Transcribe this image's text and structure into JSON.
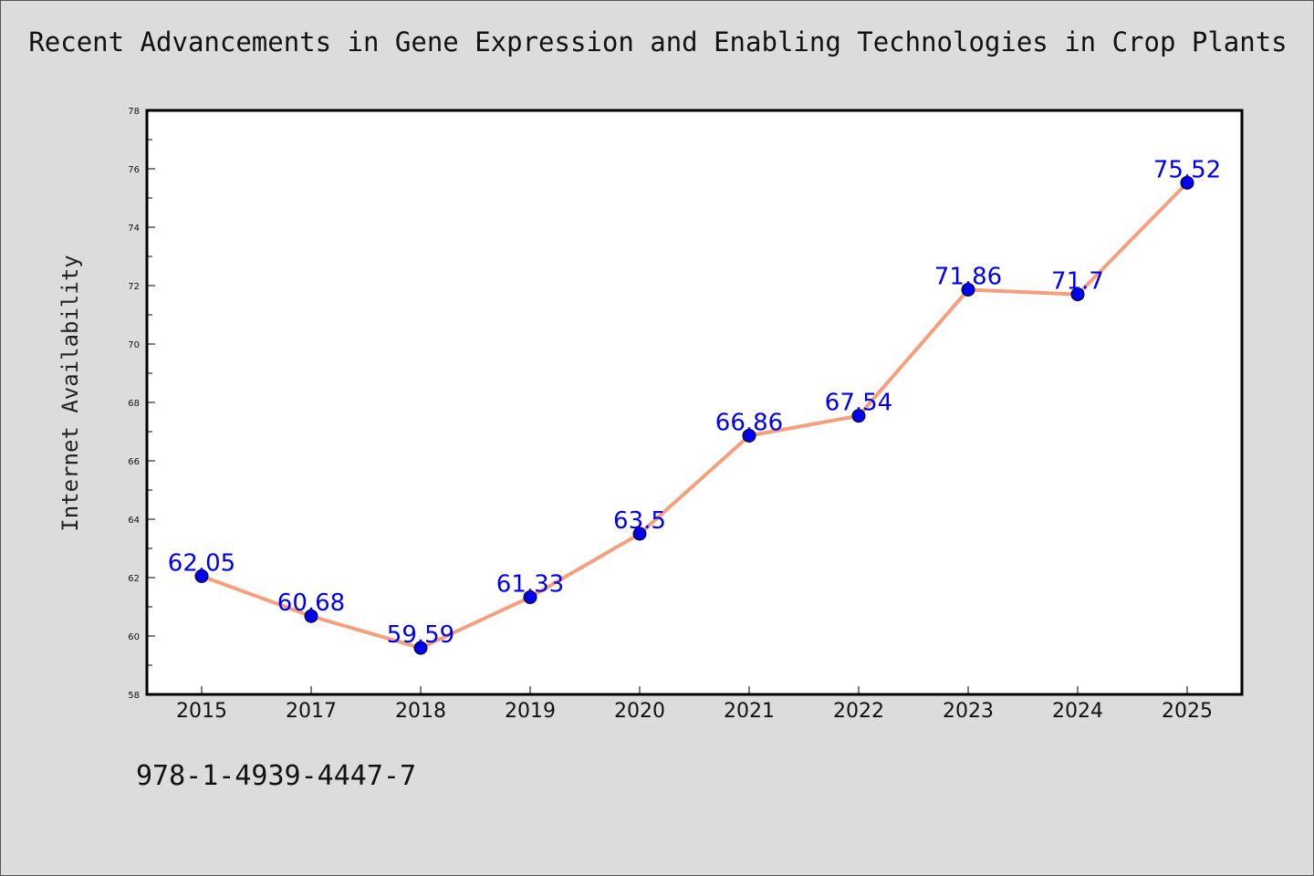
{
  "chart_data": {
    "type": "line",
    "title": "Recent Advancements in Gene Expression and Enabling Technologies in Crop Plants",
    "xlabel": "",
    "ylabel": "Internet Availability",
    "categories": [
      "2015",
      "2017",
      "2018",
      "2019",
      "2020",
      "2021",
      "2022",
      "2023",
      "2024",
      "2025"
    ],
    "series": [
      {
        "values": [
          62.05,
          60.68,
          59.59,
          61.33,
          63.5,
          66.86,
          67.54,
          71.86,
          71.7,
          75.52
        ],
        "data_labels": [
          "62.05",
          "60.68",
          "59.59",
          "61.33",
          "63.5",
          "66.86",
          "67.54",
          "71.86",
          "71.7",
          "75.52"
        ]
      }
    ],
    "ylim": [
      58,
      78
    ],
    "yticks": [
      58,
      60,
      62,
      64,
      66,
      68,
      70,
      72,
      74,
      76,
      78
    ],
    "grid": false,
    "legend": "none",
    "colors": {
      "line": "#f4a07e",
      "marker": "#0000ee",
      "marker_edge": "#000000",
      "data_label": "#0000ee",
      "plot_background": "#ffffff",
      "page_background": "#dcdcdc"
    }
  },
  "footer": {
    "code": "978-1-4939-4447-7"
  }
}
